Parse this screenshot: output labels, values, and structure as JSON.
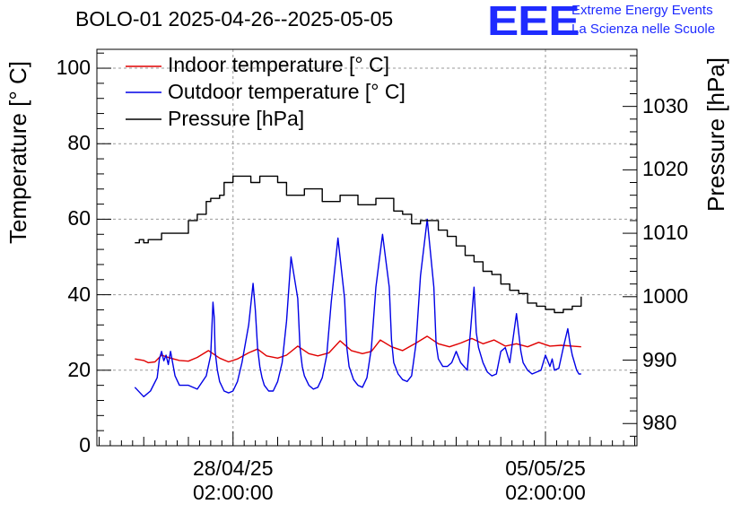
{
  "chart_data": {
    "type": "line",
    "title": "BOLO-01 2025-04-26--2025-05-05",
    "ylabel": "Temperature [° C]",
    "y2label": "Pressure [hPa]",
    "ylim": [
      0,
      105
    ],
    "y2lim": [
      976.5,
      1039
    ],
    "yticks": [
      "0",
      "20",
      "40",
      "60",
      "80",
      "100"
    ],
    "y2ticks": [
      "980",
      "990",
      "1000",
      "1010",
      "1020",
      "1030"
    ],
    "xlim": [
      -3.05,
      9.05
    ],
    "xticks": [
      {
        "x": 0,
        "date": "28/04/25",
        "time": "02:00:00"
      },
      {
        "x": 7,
        "date": "05/05/25",
        "time": "02:00:00"
      }
    ],
    "grid": true,
    "legend_placement": "top-left",
    "series": [
      {
        "name": "Indoor temperature [° C]",
        "color": "#e00000",
        "axis": "left",
        "x": [
          -2.2,
          -2.0,
          -1.9,
          -1.75,
          -1.6,
          -1.4,
          -1.2,
          -1.0,
          -0.8,
          -0.55,
          -0.3,
          -0.1,
          0.1,
          0.35,
          0.55,
          0.75,
          1.0,
          1.2,
          1.45,
          1.7,
          1.9,
          2.15,
          2.4,
          2.65,
          2.9,
          3.1,
          3.3,
          3.55,
          3.8,
          4.1,
          4.35,
          4.6,
          4.85,
          5.1,
          5.35,
          5.6,
          5.85,
          6.1,
          6.35,
          6.6,
          6.85,
          7.1,
          7.35,
          7.6,
          7.8
        ],
        "values": [
          23.0,
          22.6,
          22.0,
          22.2,
          24.0,
          23.2,
          22.6,
          22.4,
          23.4,
          25.2,
          23.2,
          22.2,
          23.0,
          24.6,
          25.6,
          23.8,
          23.2,
          24.0,
          26.4,
          24.4,
          23.8,
          24.6,
          27.8,
          25.2,
          24.4,
          25.0,
          28.0,
          26.2,
          25.2,
          27.2,
          29.0,
          27.0,
          26.2,
          27.2,
          28.4,
          27.0,
          28.0,
          26.4,
          27.0,
          26.2,
          27.4,
          26.4,
          26.6,
          26.4,
          26.2
        ]
      },
      {
        "name": "Outdoor temperature [° C]",
        "color": "#0000e6",
        "axis": "left",
        "x": [
          -2.2,
          -2.0,
          -1.85,
          -1.7,
          -1.65,
          -1.6,
          -1.55,
          -1.5,
          -1.45,
          -1.4,
          -1.3,
          -1.2,
          -1.0,
          -0.8,
          -0.6,
          -0.5,
          -0.45,
          -0.42,
          -0.4,
          -0.35,
          -0.3,
          -0.2,
          -0.1,
          0.0,
          0.1,
          0.2,
          0.35,
          0.45,
          0.5,
          0.55,
          0.6,
          0.65,
          0.7,
          0.8,
          0.9,
          1.0,
          1.1,
          1.2,
          1.3,
          1.45,
          1.5,
          1.55,
          1.6,
          1.7,
          1.8,
          1.9,
          2.0,
          2.1,
          2.2,
          2.35,
          2.5,
          2.55,
          2.6,
          2.7,
          2.8,
          2.9,
          3.0,
          3.1,
          3.2,
          3.35,
          3.5,
          3.55,
          3.6,
          3.7,
          3.8,
          3.9,
          4.0,
          4.1,
          4.2,
          4.35,
          4.5,
          4.55,
          4.6,
          4.7,
          4.8,
          4.9,
          5.0,
          5.1,
          5.25,
          5.4,
          5.45,
          5.5,
          5.6,
          5.7,
          5.8,
          5.9,
          6.0,
          6.1,
          6.2,
          6.35,
          6.45,
          6.5,
          6.6,
          6.7,
          6.8,
          6.9,
          7.0,
          7.1,
          7.15,
          7.2,
          7.3,
          7.4,
          7.5,
          7.55,
          7.6,
          7.7,
          7.75,
          7.8
        ],
        "values": [
          15.5,
          13.0,
          14.5,
          18.0,
          23.0,
          25.0,
          22.5,
          24.0,
          21.5,
          25.0,
          18.5,
          16.0,
          16.0,
          15.0,
          18.5,
          24.0,
          38.0,
          34.0,
          25.0,
          20.0,
          17.0,
          14.5,
          14.0,
          14.5,
          17.0,
          22.0,
          32.0,
          43.0,
          36.0,
          26.0,
          21.0,
          18.0,
          16.0,
          14.5,
          14.5,
          17.0,
          22.0,
          33.0,
          50.0,
          39.0,
          26.0,
          21.0,
          18.5,
          16.0,
          15.0,
          15.5,
          18.0,
          24.0,
          38.0,
          55.0,
          39.0,
          26.0,
          21.0,
          17.5,
          16.0,
          15.5,
          18.0,
          26.0,
          42.0,
          56.0,
          42.0,
          28.0,
          22.0,
          19.0,
          17.5,
          17.0,
          18.5,
          27.0,
          45.0,
          60.0,
          42.0,
          27.0,
          23.0,
          21.0,
          21.0,
          22.0,
          25.0,
          22.0,
          20.0,
          42.0,
          30.0,
          26.0,
          22.0,
          19.5,
          18.5,
          19.0,
          25.0,
          26.0,
          22.0,
          35.0,
          25.0,
          22.0,
          20.0,
          19.0,
          19.5,
          20.0,
          24.0,
          21.0,
          23.0,
          20.0,
          20.5,
          26.0,
          31.0,
          27.0,
          24.0,
          20.0,
          19.0,
          19.0
        ]
      },
      {
        "name": "Pressure [hPa]",
        "color": "#000000",
        "axis": "right",
        "x": [
          -2.2,
          -2.1,
          -2.0,
          -1.9,
          -1.6,
          -1.2,
          -1.0,
          -0.8,
          -0.6,
          -0.5,
          -0.3,
          -0.2,
          0.0,
          0.2,
          0.4,
          0.6,
          0.8,
          1.0,
          1.2,
          1.4,
          1.6,
          1.8,
          2.0,
          2.2,
          2.4,
          2.6,
          2.8,
          3.0,
          3.2,
          3.4,
          3.6,
          3.8,
          4.0,
          4.2,
          4.4,
          4.6,
          4.8,
          5.0,
          5.2,
          5.4,
          5.6,
          5.8,
          6.0,
          6.2,
          6.4,
          6.6,
          6.8,
          7.0,
          7.2,
          7.4,
          7.6,
          7.8
        ],
        "values": [
          1008.5,
          1009.0,
          1008.5,
          1009.0,
          1010.0,
          1010.0,
          1012.0,
          1013.0,
          1015.0,
          1015.5,
          1016.0,
          1018.0,
          1019.0,
          1019.0,
          1018.0,
          1019.0,
          1019.0,
          1018.0,
          1016.0,
          1016.0,
          1017.0,
          1017.0,
          1015.0,
          1015.0,
          1016.0,
          1016.0,
          1014.5,
          1014.5,
          1015.5,
          1015.5,
          1013.5,
          1013.0,
          1011.5,
          1012.0,
          1012.0,
          1010.5,
          1009.5,
          1008.0,
          1006.5,
          1005.5,
          1004.0,
          1003.5,
          1002.0,
          1001.0,
          1000.5,
          999.0,
          998.5,
          998.0,
          997.5,
          998.0,
          998.5,
          1000.0
        ]
      }
    ]
  },
  "header": {
    "logo": "EEE",
    "subtitle_line1": "Extreme Energy Events",
    "subtitle_line2": "La Scienza nelle Scuole"
  }
}
